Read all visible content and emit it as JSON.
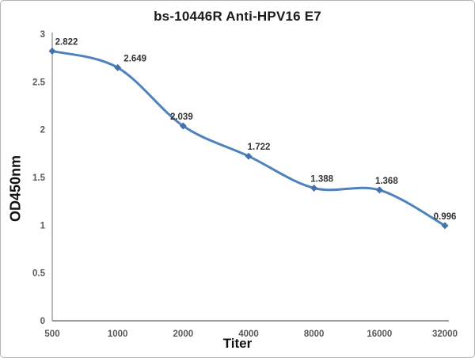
{
  "chart_data": {
    "type": "line",
    "title": "bs-10446R Anti-HPV16 E7",
    "xlabel": "Titer",
    "ylabel": "OD450nm",
    "categories": [
      "500",
      "1000",
      "2000",
      "4000",
      "8000",
      "16000",
      "32000"
    ],
    "series": [
      {
        "name": "OD450nm vs Titer",
        "values": [
          2.822,
          2.649,
          2.039,
          1.722,
          1.388,
          1.368,
          0.996
        ],
        "data_labels": [
          "2.822",
          "2.649",
          "2.039",
          "1.722",
          "1.388",
          "1.368",
          "0.996"
        ]
      }
    ],
    "y_ticks": [
      "0",
      "0.5",
      "1",
      "1.5",
      "2",
      "2.5",
      "3"
    ],
    "ylim": [
      0,
      3
    ],
    "grid": false,
    "legend": false,
    "smooth_line": true,
    "marker": "diamond",
    "colors": {
      "line": "#4f81bd",
      "marker": "#4273ae",
      "axis": "#9b9b9b",
      "tick_text": "#595959",
      "label_text": "#333333",
      "title_text": "#1a1a1a"
    }
  }
}
